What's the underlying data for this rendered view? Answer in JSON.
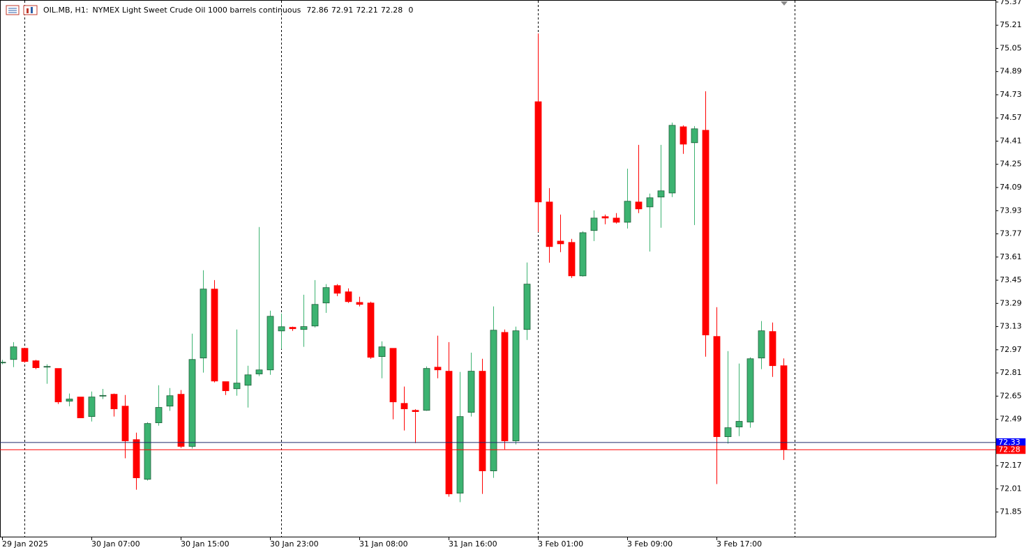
{
  "chart_data": {
    "type": "candlestick",
    "symbol": "OIL.MB, H1:",
    "description": "NYMEX Light Sweet Crude Oil 1000 barrels continuous",
    "header_value": 0,
    "up_color": "#3cb371",
    "down_color": "#ff0000",
    "categories": [
      "29 Jan 2025",
      null,
      null,
      null,
      null,
      null,
      null,
      null,
      "30 Jan 07:00",
      null,
      null,
      null,
      null,
      null,
      null,
      null,
      "30 Jan 15:00",
      null,
      null,
      null,
      null,
      null,
      null,
      null,
      "30 Jan 23:00",
      null,
      null,
      null,
      null,
      null,
      null,
      null,
      "31 Jan 08:00",
      null,
      null,
      null,
      null,
      null,
      null,
      null,
      "31 Jan 16:00",
      null,
      null,
      null,
      null,
      null,
      null,
      null,
      "3 Feb 01:00",
      null,
      null,
      null,
      null,
      null,
      null,
      null,
      "3 Feb 09:00",
      null,
      null,
      null,
      null,
      null,
      null,
      null,
      "3 Feb 17:00",
      null,
      null,
      null,
      null,
      null,
      null
    ],
    "open": [
      72.88,
      72.903,
      72.98,
      72.894,
      72.85,
      72.841,
      72.615,
      72.644,
      72.509,
      72.65,
      72.663,
      72.581,
      72.35,
      72.076,
      72.466,
      72.581,
      72.663,
      72.303,
      72.913,
      73.389,
      72.75,
      72.701,
      72.725,
      72.803,
      72.831,
      73.1,
      73.125,
      73.11,
      73.134,
      73.293,
      73.413,
      73.37,
      73.297,
      73.293,
      72.923,
      72.98,
      72.6,
      72.552,
      72.552,
      72.85,
      72.822,
      71.98,
      72.538,
      72.822,
      72.134,
      73.09,
      72.341,
      73.11,
      74.682,
      73.99,
      73.72,
      73.711,
      73.48,
      73.793,
      73.889,
      73.879,
      73.85,
      73.99,
      73.956,
      74.024,
      74.052,
      74.509,
      74.399,
      74.485,
      73.062,
      72.37,
      72.437,
      72.471,
      72.913,
      73.096,
      72.86
    ],
    "high": [
      72.9,
      73.023,
      72.98,
      72.9,
      72.87,
      72.841,
      72.668,
      72.644,
      72.682,
      72.7,
      72.668,
      72.658,
      72.398,
      72.47,
      72.725,
      72.706,
      72.692,
      73.081,
      73.519,
      73.451,
      72.75,
      73.11,
      72.86,
      73.817,
      73.24,
      73.22,
      73.13,
      73.35,
      73.451,
      73.423,
      73.423,
      73.394,
      73.336,
      73.302,
      73.028,
      72.98,
      72.716,
      72.56,
      72.855,
      73.067,
      73.023,
      72.817,
      72.95,
      72.908,
      73.269,
      73.11,
      73.13,
      73.572,
      75.153,
      74.086,
      73.903,
      73.735,
      73.788,
      73.932,
      73.903,
      73.913,
      74.22,
      74.384,
      74.048,
      74.384,
      74.538,
      74.519,
      74.514,
      74.754,
      73.264,
      72.961,
      72.875,
      72.918,
      73.168,
      73.158,
      72.91
    ],
    "low": [
      72.87,
      72.85,
      72.88,
      72.836,
      72.735,
      72.596,
      72.58,
      72.5,
      72.475,
      72.63,
      72.509,
      72.221,
      72.004,
      72.067,
      72.446,
      72.548,
      72.293,
      72.288,
      72.812,
      72.745,
      72.658,
      72.653,
      72.571,
      72.788,
      72.797,
      72.975,
      73.1,
      72.99,
      73.124,
      73.225,
      73.34,
      73.293,
      73.269,
      72.908,
      72.773,
      72.49,
      72.413,
      72.326,
      72.548,
      72.773,
      71.956,
      71.918,
      72.509,
      71.975,
      72.086,
      72.283,
      72.317,
      73.038,
      73.783,
      73.571,
      73.644,
      73.466,
      73.475,
      73.72,
      73.836,
      73.841,
      73.807,
      73.913,
      73.648,
      73.812,
      74.024,
      74.322,
      73.831,
      72.922,
      72.043,
      72.322,
      72.374,
      72.432,
      72.836,
      72.783,
      72.21
    ],
    "close": [
      72.884,
      72.99,
      72.889,
      72.846,
      72.855,
      72.61,
      72.63,
      72.5,
      72.644,
      72.655,
      72.562,
      72.341,
      72.086,
      72.461,
      72.572,
      72.653,
      72.303,
      72.903,
      73.389,
      72.754,
      72.687,
      72.74,
      72.797,
      72.831,
      73.201,
      73.129,
      73.115,
      73.13,
      73.283,
      73.399,
      73.36,
      73.302,
      73.283,
      72.918,
      72.99,
      72.61,
      72.562,
      72.543,
      72.841,
      72.831,
      71.975,
      72.509,
      72.822,
      72.134,
      73.105,
      72.341,
      73.101,
      73.423,
      73.99,
      73.682,
      73.701,
      73.48,
      73.778,
      73.879,
      73.879,
      73.85,
      73.995,
      73.942,
      74.019,
      74.067,
      74.519,
      74.389,
      74.495,
      73.072,
      72.37,
      72.432,
      72.476,
      72.908,
      73.101,
      72.86,
      72.28
    ],
    "ask": 72.33,
    "ask_color": "#1f2a6b",
    "bid": 72.28,
    "bid_color": "#ff0000",
    "ylim": [
      71.68,
      75.384
    ],
    "yticks": [
      75.37,
      75.21,
      75.05,
      74.89,
      74.73,
      74.57,
      74.41,
      74.25,
      74.09,
      73.93,
      73.77,
      73.61,
      73.45,
      73.29,
      73.13,
      72.97,
      72.81,
      72.65,
      72.49,
      72.17,
      72.01,
      71.85
    ]
  }
}
